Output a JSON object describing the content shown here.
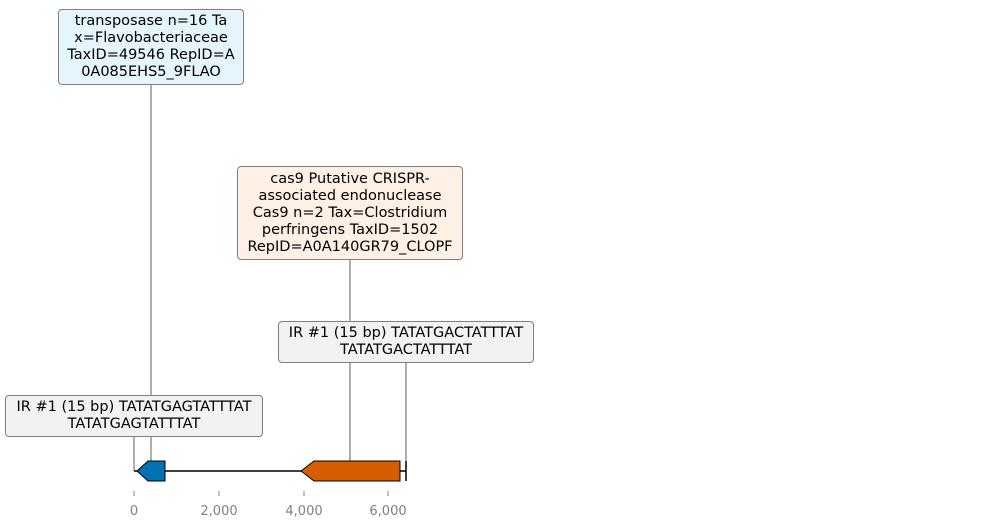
{
  "colors": {
    "transposase_box": "#e5f5fc",
    "cas9_box": "#fef0e5",
    "ir_box": "#f2f2f2",
    "gene_blue": "#0072b2",
    "gene_orange": "#d55e00",
    "axis": "#808080"
  },
  "annotations": {
    "transposase": [
      "transposase n=16 Ta",
      "x=Flavobacteriaceae",
      "TaxID=49546 RepID=A",
      "0A085EHS5_9FLAO"
    ],
    "cas9": [
      "cas9 Putative CRISPR-",
      "associated endonuclease",
      "Cas9 n=2 Tax=Clostridium",
      "perfringens TaxID=1502",
      "RepID=A0A140GR79_CLOPF"
    ],
    "ir_right": [
      "IR #1 (15 bp) TATATGACTATTTAT",
      "TATATGACTATTTAT"
    ],
    "ir_left": [
      "IR #1 (15 bp) TATATGAGTATTTAT",
      "TATATGAGTATTTAT"
    ]
  },
  "axis": {
    "ticks": [
      0,
      2000,
      4000,
      6000
    ],
    "tick_labels": [
      "0",
      "2,000",
      "4,000",
      "6,000"
    ]
  },
  "features": {
    "transposase_gene": {
      "start": 0,
      "end": 730,
      "strand": "-"
    },
    "cas9_gene": {
      "start": 3950,
      "end": 6300,
      "strand": "-"
    },
    "ir_left_pos": 0,
    "ir_right_pos": 6420,
    "sequence_end": 6420
  }
}
